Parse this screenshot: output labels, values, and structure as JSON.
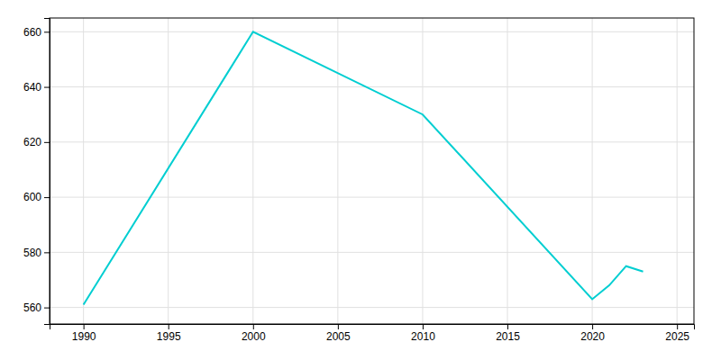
{
  "chart_data": {
    "type": "line",
    "x": [
      1990,
      2000,
      2010,
      2020,
      2021,
      2022,
      2023
    ],
    "values": [
      561,
      660,
      630,
      563,
      568,
      575,
      573
    ],
    "color": "#00CED1",
    "xlim": [
      1988,
      2026
    ],
    "ylim": [
      554,
      665
    ],
    "xticks": [
      1990,
      1995,
      2000,
      2005,
      2010,
      2015,
      2020,
      2025
    ],
    "yticks": [
      560,
      580,
      600,
      620,
      640,
      660
    ],
    "grid": true
  }
}
